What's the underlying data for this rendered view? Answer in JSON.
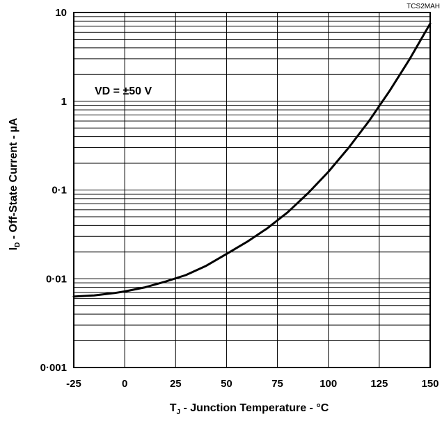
{
  "figure_id": "TCS2MAH",
  "chart_data": {
    "type": "line",
    "xlabel": {
      "main": "T",
      "sub": "J",
      "rest": " - Junction Temperature - °C"
    },
    "ylabel": {
      "main": "I",
      "sub": "D",
      "rest": " - Off-State Current - µA"
    },
    "x_ticks": [
      "-25",
      "0",
      "25",
      "50",
      "75",
      "100",
      "125",
      "150"
    ],
    "y_ticks": [
      "0·001",
      "0·01",
      "0·1",
      "1",
      "10"
    ],
    "xlim": [
      -25,
      150
    ],
    "ylim": [
      0.001,
      10
    ],
    "y_scale": "log",
    "grid": true,
    "annotation": "VD = ±50 V",
    "series": [
      {
        "x": [
          -25,
          -15,
          -5,
          0,
          10,
          20,
          30,
          40,
          50,
          60,
          70,
          80,
          90,
          100,
          110,
          120,
          130,
          140,
          150
        ],
        "y": [
          0.0063,
          0.0065,
          0.0069,
          0.0072,
          0.008,
          0.0093,
          0.011,
          0.014,
          0.019,
          0.026,
          0.037,
          0.056,
          0.092,
          0.16,
          0.3,
          0.6,
          1.3,
          3.0,
          7.5
        ]
      }
    ]
  }
}
